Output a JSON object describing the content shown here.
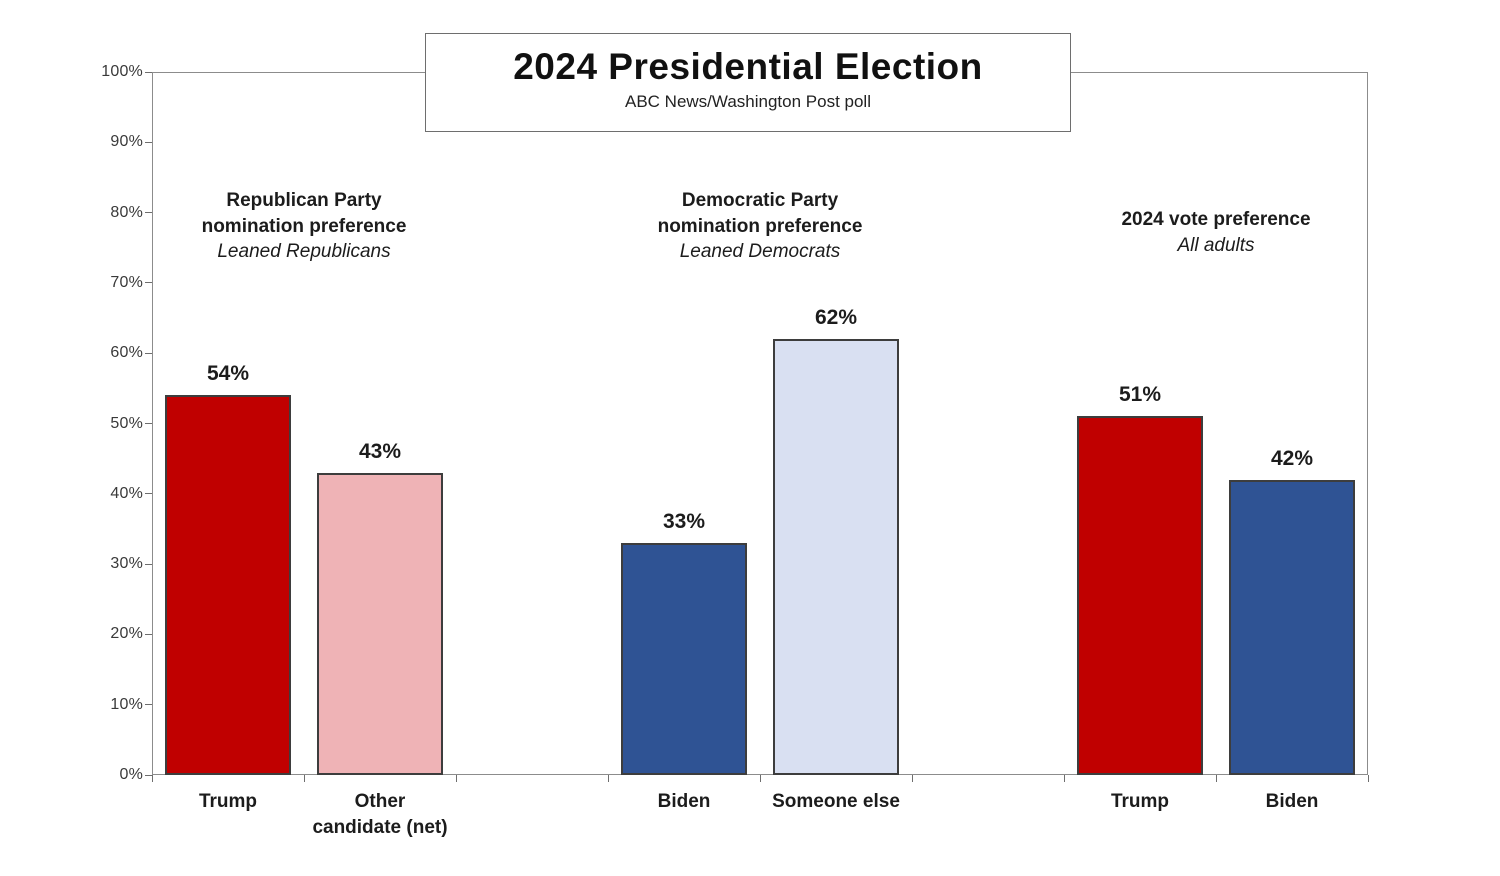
{
  "chart_data": {
    "type": "bar",
    "title": "2024 Presidential Election",
    "subtitle": "ABC News/Washington Post poll",
    "y_axis": {
      "min": 0,
      "max": 100,
      "step": 10,
      "tick_suffix": "%",
      "tick_labels": [
        "0%",
        "10%",
        "20%",
        "30%",
        "40%",
        "50%",
        "60%",
        "70%",
        "80%",
        "90%",
        "100%"
      ]
    },
    "grid": false,
    "legend": false,
    "colors": {
      "republican_red": "#c00000",
      "light_pink": "#efb3b6",
      "democrat_blue": "#2f5394",
      "light_blue": "#d9e0f2",
      "bar_border": "#3d3d3d"
    },
    "groups": [
      {
        "header_lines": [
          "Republican Party",
          "nomination preference"
        ],
        "subheader": "Leaned Republicans",
        "slots": [
          0,
          1
        ],
        "bars": [
          {
            "category": "Trump",
            "category_lines": [
              "Trump"
            ],
            "value": 54,
            "label": "54%",
            "color": "#c00000",
            "slot": 0
          },
          {
            "category": "Other candidate (net)",
            "category_lines": [
              "Other",
              "candidate (net)"
            ],
            "value": 43,
            "label": "43%",
            "color": "#efb3b6",
            "slot": 1
          }
        ]
      },
      {
        "header_lines": [
          "Democratic Party",
          "nomination preference"
        ],
        "subheader": "Leaned Democrats",
        "slots": [
          3,
          4
        ],
        "bars": [
          {
            "category": "Biden",
            "category_lines": [
              "Biden"
            ],
            "value": 33,
            "label": "33%",
            "color": "#2f5394",
            "slot": 3
          },
          {
            "category": "Someone else",
            "category_lines": [
              "Someone else"
            ],
            "value": 62,
            "label": "62%",
            "color": "#d9e0f2",
            "slot": 4
          }
        ]
      },
      {
        "header_lines": [
          "2024 vote preference"
        ],
        "subheader": "All adults",
        "slots": [
          6,
          7
        ],
        "bars": [
          {
            "category": "Trump",
            "category_lines": [
              "Trump"
            ],
            "value": 51,
            "label": "51%",
            "color": "#c00000",
            "slot": 6
          },
          {
            "category": "Biden",
            "category_lines": [
              "Biden"
            ],
            "value": 42,
            "label": "42%",
            "color": "#2f5394",
            "slot": 7
          }
        ]
      }
    ]
  }
}
